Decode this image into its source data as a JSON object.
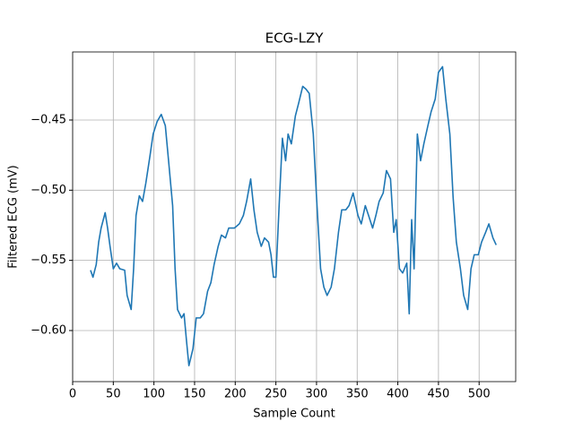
{
  "chart_data": {
    "type": "line",
    "title": "ECG-LZY",
    "x_label": "Sample Count",
    "y_label": "Filtered ECG (mV)",
    "grid": true,
    "xlim": [
      0,
      545
    ],
    "ylim": [
      -0.6364,
      -0.4015
    ],
    "xticks": [
      0,
      50,
      100,
      150,
      200,
      250,
      300,
      350,
      400,
      450,
      500
    ],
    "yticks": [
      {
        "value": -0.6,
        "label": "−0.60"
      },
      {
        "value": -0.55,
        "label": "−0.55"
      },
      {
        "value": -0.5,
        "label": "−0.50"
      },
      {
        "value": -0.45,
        "label": "−0.45"
      }
    ],
    "x": [
      22,
      25,
      29,
      32,
      35,
      40,
      43,
      46,
      50,
      54,
      58,
      64,
      67,
      72,
      75,
      78,
      82,
      86,
      90,
      95,
      99,
      104,
      109,
      114,
      118,
      123,
      126,
      129,
      134,
      137,
      140,
      143,
      148,
      152,
      157,
      161,
      166,
      170,
      174,
      179,
      183,
      188,
      192,
      199,
      205,
      210,
      214,
      219,
      223,
      227,
      232,
      236,
      241,
      244,
      247,
      250,
      254,
      258,
      262,
      265,
      269,
      274,
      278,
      283,
      287,
      291,
      296,
      300,
      305,
      309,
      313,
      318,
      322,
      327,
      331,
      336,
      340,
      345,
      351,
      355,
      360,
      364,
      369,
      373,
      377,
      382,
      386,
      391,
      395,
      398,
      402,
      406,
      411,
      414,
      417,
      420,
      424,
      428,
      432,
      437,
      441,
      446,
      450,
      455,
      459,
      464,
      468,
      472,
      477,
      481,
      486,
      490,
      494,
      499,
      503,
      508,
      512,
      517,
      521
    ],
    "series": [
      {
        "color": "#1f77b4",
        "values": [
          -0.557,
          -0.562,
          -0.553,
          -0.537,
          -0.527,
          -0.516,
          -0.527,
          -0.54,
          -0.556,
          -0.552,
          -0.556,
          -0.557,
          -0.575,
          -0.585,
          -0.556,
          -0.518,
          -0.504,
          -0.508,
          -0.495,
          -0.476,
          -0.46,
          -0.451,
          -0.446,
          -0.454,
          -0.479,
          -0.511,
          -0.556,
          -0.585,
          -0.591,
          -0.588,
          -0.607,
          -0.625,
          -0.613,
          -0.591,
          -0.591,
          -0.588,
          -0.572,
          -0.566,
          -0.553,
          -0.54,
          -0.532,
          -0.534,
          -0.527,
          -0.527,
          -0.524,
          -0.518,
          -0.508,
          -0.492,
          -0.514,
          -0.53,
          -0.54,
          -0.534,
          -0.537,
          -0.546,
          -0.562,
          -0.562,
          -0.511,
          -0.463,
          -0.479,
          -0.46,
          -0.467,
          -0.447,
          -0.438,
          -0.426,
          -0.428,
          -0.431,
          -0.46,
          -0.505,
          -0.556,
          -0.569,
          -0.575,
          -0.569,
          -0.556,
          -0.53,
          -0.514,
          -0.514,
          -0.511,
          -0.502,
          -0.518,
          -0.524,
          -0.511,
          -0.518,
          -0.527,
          -0.518,
          -0.508,
          -0.502,
          -0.486,
          -0.492,
          -0.53,
          -0.521,
          -0.556,
          -0.559,
          -0.552,
          -0.588,
          -0.521,
          -0.556,
          -0.46,
          -0.479,
          -0.467,
          -0.454,
          -0.444,
          -0.435,
          -0.416,
          -0.412,
          -0.435,
          -0.46,
          -0.505,
          -0.537,
          -0.556,
          -0.575,
          -0.585,
          -0.556,
          -0.546,
          -0.546,
          -0.537,
          -0.53,
          -0.524,
          -0.534,
          -0.539
        ]
      }
    ]
  }
}
